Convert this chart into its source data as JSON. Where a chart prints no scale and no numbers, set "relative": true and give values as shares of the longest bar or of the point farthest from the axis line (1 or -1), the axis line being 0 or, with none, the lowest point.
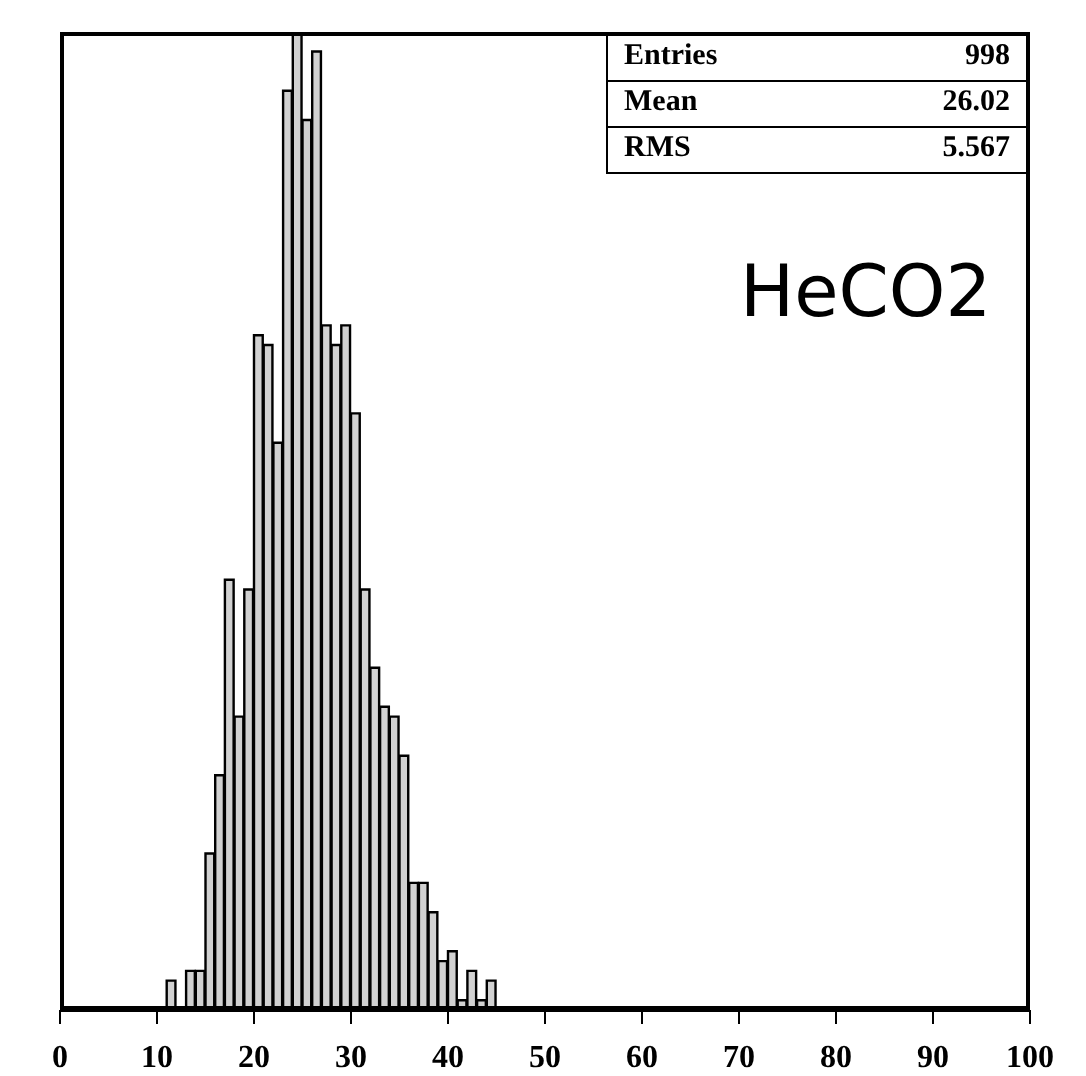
{
  "chart_data": {
    "type": "bar",
    "relative": true,
    "color": "#000000",
    "x": [
      0.5,
      1.5,
      2.5,
      3.5,
      4.5,
      5.5,
      6.5,
      7.5,
      8.5,
      9.5,
      10.5,
      11.5,
      12.5,
      13.5,
      14.5,
      15.5,
      16.5,
      17.5,
      18.5,
      19.5,
      20.5,
      21.5,
      22.5,
      23.5,
      24.5,
      25.5,
      26.5,
      27.5,
      28.5,
      29.5,
      30.5,
      31.5,
      32.5,
      33.5,
      34.5,
      35.5,
      36.5,
      37.5,
      38.5,
      39.5,
      40.5,
      41.5,
      42.5,
      43.5,
      44.5,
      45.5,
      46.5,
      47.5,
      48.5,
      49.5,
      50.5,
      51.5,
      52.5,
      53.5,
      54.5,
      55.5,
      56.5,
      57.5,
      58.5,
      59.5,
      60.5,
      61.5,
      62.5,
      63.5,
      64.5,
      65.5,
      66.5,
      67.5,
      68.5,
      69.5,
      70.5,
      71.5,
      72.5,
      73.5,
      74.5,
      75.5,
      76.5,
      77.5,
      78.5,
      79.5,
      80.5,
      81.5,
      82.5,
      83.5,
      84.5,
      85.5,
      86.5,
      87.5,
      88.5,
      89.5,
      90.5,
      91.5,
      92.5,
      93.5,
      94.5,
      95.5,
      96.5,
      97.5,
      98.5,
      99.5
    ],
    "values": [
      0,
      0,
      0,
      0,
      0,
      0,
      0,
      0,
      0,
      0,
      0,
      0.03,
      0,
      0.04,
      0.04,
      0.16,
      0.24,
      0.44,
      0.3,
      0.43,
      0.69,
      0.68,
      0.58,
      0.94,
      1,
      0.91,
      0.98,
      0.7,
      0.68,
      0.7,
      0.61,
      0.43,
      0.35,
      0.31,
      0.3,
      0.26,
      0.13,
      0.13,
      0.1,
      0.05,
      0.06,
      0.01,
      0.04,
      0.01,
      0.03,
      0,
      0,
      0,
      0,
      0,
      0,
      0,
      0,
      0,
      0,
      0,
      0,
      0,
      0,
      0,
      0,
      0,
      0,
      0,
      0,
      0,
      0,
      0,
      0,
      0,
      0,
      0,
      0,
      0,
      0,
      0,
      0,
      0,
      0,
      0,
      0,
      0,
      0,
      0,
      0,
      0,
      0,
      0,
      0,
      0,
      0,
      0,
      0,
      0,
      0,
      0,
      0,
      0,
      0,
      0
    ],
    "xlim": [
      0,
      100
    ],
    "xticks": [
      0,
      10,
      20,
      30,
      40,
      50,
      60,
      70,
      80,
      90,
      100
    ],
    "annotations": [
      "Entries",
      "998",
      "Mean",
      "26.02",
      "RMS",
      "5.567",
      "HeCO2"
    ]
  }
}
